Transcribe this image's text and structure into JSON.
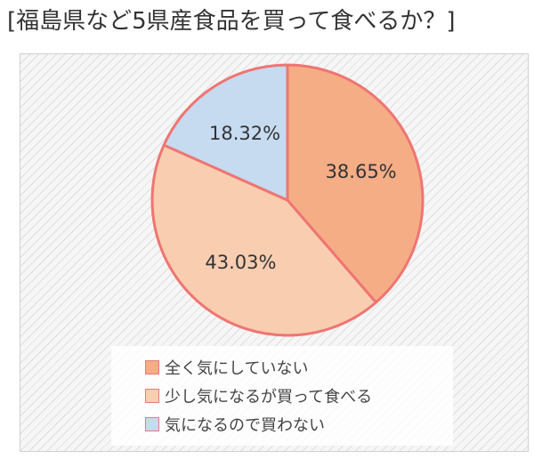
{
  "title": "[福島県など5県産食品を買って食べるか？]",
  "chart_data": {
    "type": "pie",
    "title": "[福島県など5県産食品を買って食べるか？]",
    "slices": [
      {
        "label": "全く気にしていない",
        "value": 38.65,
        "value_label": "38.65%",
        "color": "#f5ad86"
      },
      {
        "label": "少し気になるが買って食べる",
        "value": 43.03,
        "value_label": "43.03%",
        "color": "#f8cdb0"
      },
      {
        "label": "気になるので買わない",
        "value": 18.32,
        "value_label": "18.32%",
        "color": "#c6daf0"
      }
    ],
    "slice_border_color": "#ef7572",
    "start": "top, clockwise",
    "legend": {
      "placement": "bottom-center",
      "entries": [
        "全く気にしていない",
        "少し気になるが買って食べる",
        "気になるので買わない"
      ]
    }
  }
}
